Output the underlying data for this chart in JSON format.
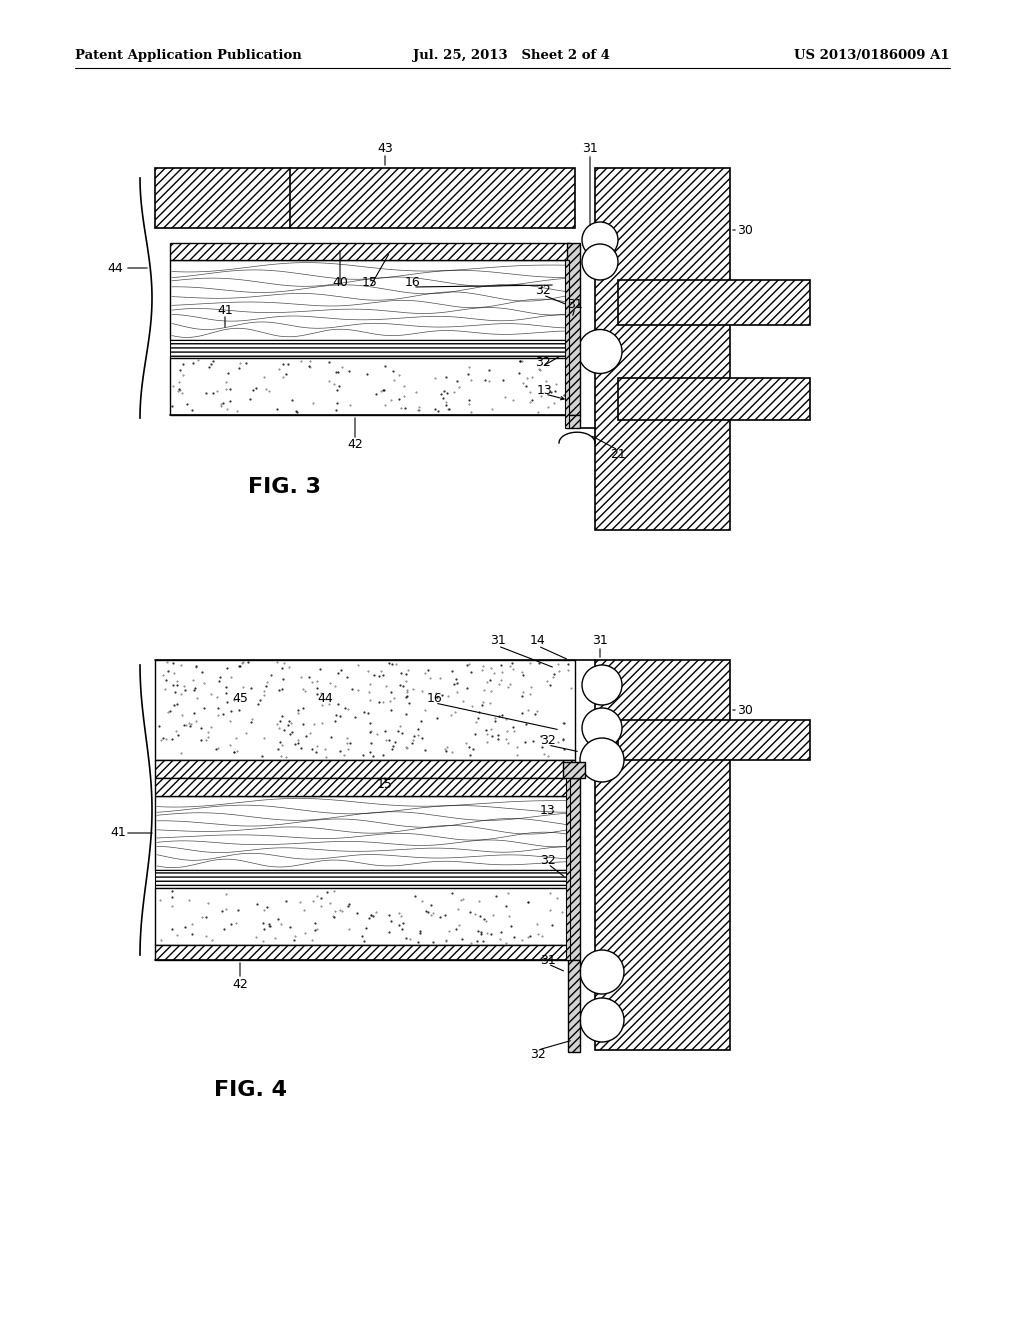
{
  "header_left": "Patent Application Publication",
  "header_center": "Jul. 25, 2013   Sheet 2 of 4",
  "header_right": "US 2013/0186009 A1",
  "fig3_label": "FIG. 3",
  "fig4_label": "FIG. 4",
  "bg": "#ffffff"
}
